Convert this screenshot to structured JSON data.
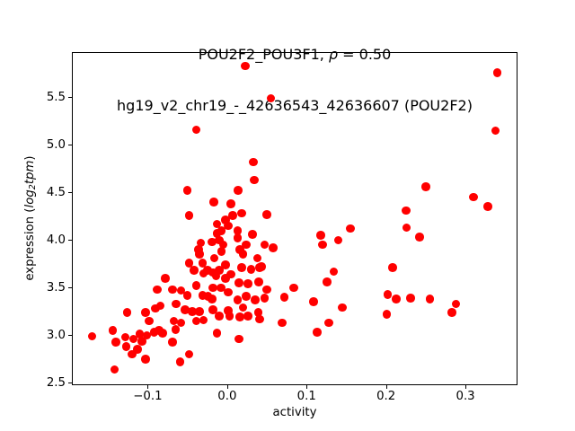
{
  "figure": {
    "background": "#ffffff",
    "title_line1": {
      "prefix": "POU2F2_POU3F1, ",
      "rho": "ρ",
      "suffix": " = 0.50"
    },
    "title_line2": "hg19_v2_chr19_-_42636543_42636607 (POU2F2)",
    "xlabel": "activity",
    "ylabel": {
      "prefix": "expression (",
      "italic1": "log",
      "sub": "2",
      "italic2": "tpm",
      "suffix": ")"
    }
  },
  "chart_data": {
    "type": "scatter",
    "title": "POU2F2_POU3F1, ρ = 0.50",
    "subtitle": "hg19_v2_chr19_-_42636543_42636607 (POU2F2)",
    "xlabel": "activity",
    "ylabel": "expression (log2tpm)",
    "correlation_rho": 0.5,
    "marker_color": "#ff0000",
    "axis_color": "#000000",
    "grid": false,
    "legend": "none",
    "xlim": [
      -0.1955,
      0.3655
    ],
    "ylim": [
      2.475,
      5.975
    ],
    "xticks": {
      "values": [
        -0.1,
        0.0,
        0.1,
        0.2,
        0.3
      ],
      "labels": [
        "−0.1",
        "0.0",
        "0.1",
        "0.2",
        "0.3"
      ]
    },
    "yticks": {
      "values": [
        2.5,
        3.0,
        3.5,
        4.0,
        4.5,
        5.0,
        5.5
      ],
      "labels": [
        "2.5",
        "3.0",
        "3.5",
        "4.0",
        "4.5",
        "5.0",
        "5.5"
      ]
    },
    "points": [
      [
        -0.039,
        5.16
      ],
      [
        0.055,
        5.49
      ],
      [
        0.023,
        5.83
      ],
      [
        0.34,
        5.76
      ],
      [
        0.338,
        5.15
      ],
      [
        0.033,
        4.82
      ],
      [
        0.034,
        4.63
      ],
      [
        -0.05,
        4.52
      ],
      [
        0.014,
        4.52
      ],
      [
        0.25,
        4.56
      ],
      [
        -0.017,
        4.4
      ],
      [
        0.005,
        4.38
      ],
      [
        0.31,
        4.45
      ],
      [
        0.328,
        4.35
      ],
      [
        0.225,
        4.31
      ],
      [
        -0.048,
        4.26
      ],
      [
        -0.002,
        4.21
      ],
      [
        -0.013,
        4.17
      ],
      [
        0.007,
        4.26
      ],
      [
        0.018,
        4.28
      ],
      [
        0.05,
        4.27
      ],
      [
        0.001,
        4.15
      ],
      [
        -0.007,
        4.1
      ],
      [
        0.226,
        4.13
      ],
      [
        0.242,
        4.03
      ],
      [
        0.155,
        4.12
      ],
      [
        0.118,
        4.05
      ],
      [
        0.14,
        4.0
      ],
      [
        0.12,
        3.95
      ],
      [
        -0.013,
        4.07
      ],
      [
        0.013,
        4.1
      ],
      [
        0.032,
        4.06
      ],
      [
        -0.033,
        3.97
      ],
      [
        -0.019,
        3.98
      ],
      [
        -0.01,
        4.0
      ],
      [
        -0.005,
        3.95
      ],
      [
        0.013,
        4.02
      ],
      [
        0.024,
        3.95
      ],
      [
        0.047,
        3.95
      ],
      [
        0.058,
        3.92
      ],
      [
        -0.036,
        3.9
      ],
      [
        0.016,
        3.9
      ],
      [
        0.02,
        3.85
      ],
      [
        0.038,
        3.81
      ],
      [
        -0.035,
        3.85
      ],
      [
        -0.007,
        3.88
      ],
      [
        -0.016,
        3.81
      ],
      [
        0.043,
        3.72
      ],
      [
        -0.048,
        3.76
      ],
      [
        -0.031,
        3.76
      ],
      [
        -0.002,
        3.74
      ],
      [
        0.018,
        3.71
      ],
      [
        0.041,
        3.71
      ],
      [
        0.03,
        3.69
      ],
      [
        -0.042,
        3.68
      ],
      [
        -0.025,
        3.68
      ],
      [
        -0.01,
        3.68
      ],
      [
        -0.03,
        3.65
      ],
      [
        -0.018,
        3.66
      ],
      [
        -0.014,
        3.62
      ],
      [
        -0.002,
        3.6
      ],
      [
        0.005,
        3.64
      ],
      [
        0.134,
        3.67
      ],
      [
        0.126,
        3.56
      ],
      [
        0.208,
        3.71
      ],
      [
        -0.078,
        3.6
      ],
      [
        0.015,
        3.55
      ],
      [
        0.026,
        3.54
      ],
      [
        0.04,
        3.56
      ],
      [
        0.05,
        3.48
      ],
      [
        -0.088,
        3.48
      ],
      [
        -0.069,
        3.48
      ],
      [
        -0.058,
        3.47
      ],
      [
        -0.05,
        3.42
      ],
      [
        -0.039,
        3.52
      ],
      [
        -0.018,
        3.5
      ],
      [
        -0.008,
        3.5
      ],
      [
        -0.031,
        3.42
      ],
      [
        -0.024,
        3.41
      ],
      [
        -0.019,
        3.38
      ],
      [
        0.001,
        3.45
      ],
      [
        0.013,
        3.37
      ],
      [
        0.024,
        3.41
      ],
      [
        0.035,
        3.37
      ],
      [
        0.047,
        3.39
      ],
      [
        0.072,
        3.4
      ],
      [
        0.084,
        3.5
      ],
      [
        0.109,
        3.35
      ],
      [
        0.145,
        3.29
      ],
      [
        0.202,
        3.43
      ],
      [
        0.213,
        3.38
      ],
      [
        0.231,
        3.39
      ],
      [
        0.255,
        3.38
      ],
      [
        0.288,
        3.33
      ],
      [
        0.283,
        3.24
      ],
      [
        0.201,
        3.22
      ],
      [
        -0.126,
        3.24
      ],
      [
        -0.103,
        3.24
      ],
      [
        -0.098,
        3.15
      ],
      [
        -0.09,
        3.28
      ],
      [
        -0.084,
        3.31
      ],
      [
        -0.064,
        3.33
      ],
      [
        -0.053,
        3.27
      ],
      [
        -0.044,
        3.25
      ],
      [
        -0.035,
        3.25
      ],
      [
        -0.018,
        3.27
      ],
      [
        -0.01,
        3.2
      ],
      [
        0.001,
        3.26
      ],
      [
        0.003,
        3.2
      ],
      [
        0.016,
        3.19
      ],
      [
        0.02,
        3.29
      ],
      [
        0.026,
        3.2
      ],
      [
        0.039,
        3.24
      ],
      [
        0.041,
        3.17
      ],
      [
        -0.067,
        3.15
      ],
      [
        -0.058,
        3.13
      ],
      [
        -0.039,
        3.15
      ],
      [
        -0.03,
        3.16
      ],
      [
        0.069,
        3.13
      ],
      [
        0.128,
        3.13
      ],
      [
        0.113,
        3.03
      ],
      [
        -0.17,
        2.99
      ],
      [
        -0.144,
        3.05
      ],
      [
        -0.14,
        2.93
      ],
      [
        -0.128,
        2.98
      ],
      [
        -0.127,
        2.88
      ],
      [
        -0.118,
        2.96
      ],
      [
        -0.11,
        3.01
      ],
      [
        -0.101,
        3.0
      ],
      [
        -0.107,
        2.94
      ],
      [
        -0.092,
        3.03
      ],
      [
        -0.086,
        3.05
      ],
      [
        -0.081,
        3.02
      ],
      [
        -0.065,
        3.06
      ],
      [
        -0.069,
        2.93
      ],
      [
        -0.013,
        3.02
      ],
      [
        0.015,
        2.96
      ],
      [
        -0.12,
        2.8
      ],
      [
        -0.113,
        2.85
      ],
      [
        -0.103,
        2.75
      ],
      [
        -0.059,
        2.72
      ],
      [
        -0.048,
        2.8
      ],
      [
        -0.142,
        2.64
      ]
    ]
  }
}
